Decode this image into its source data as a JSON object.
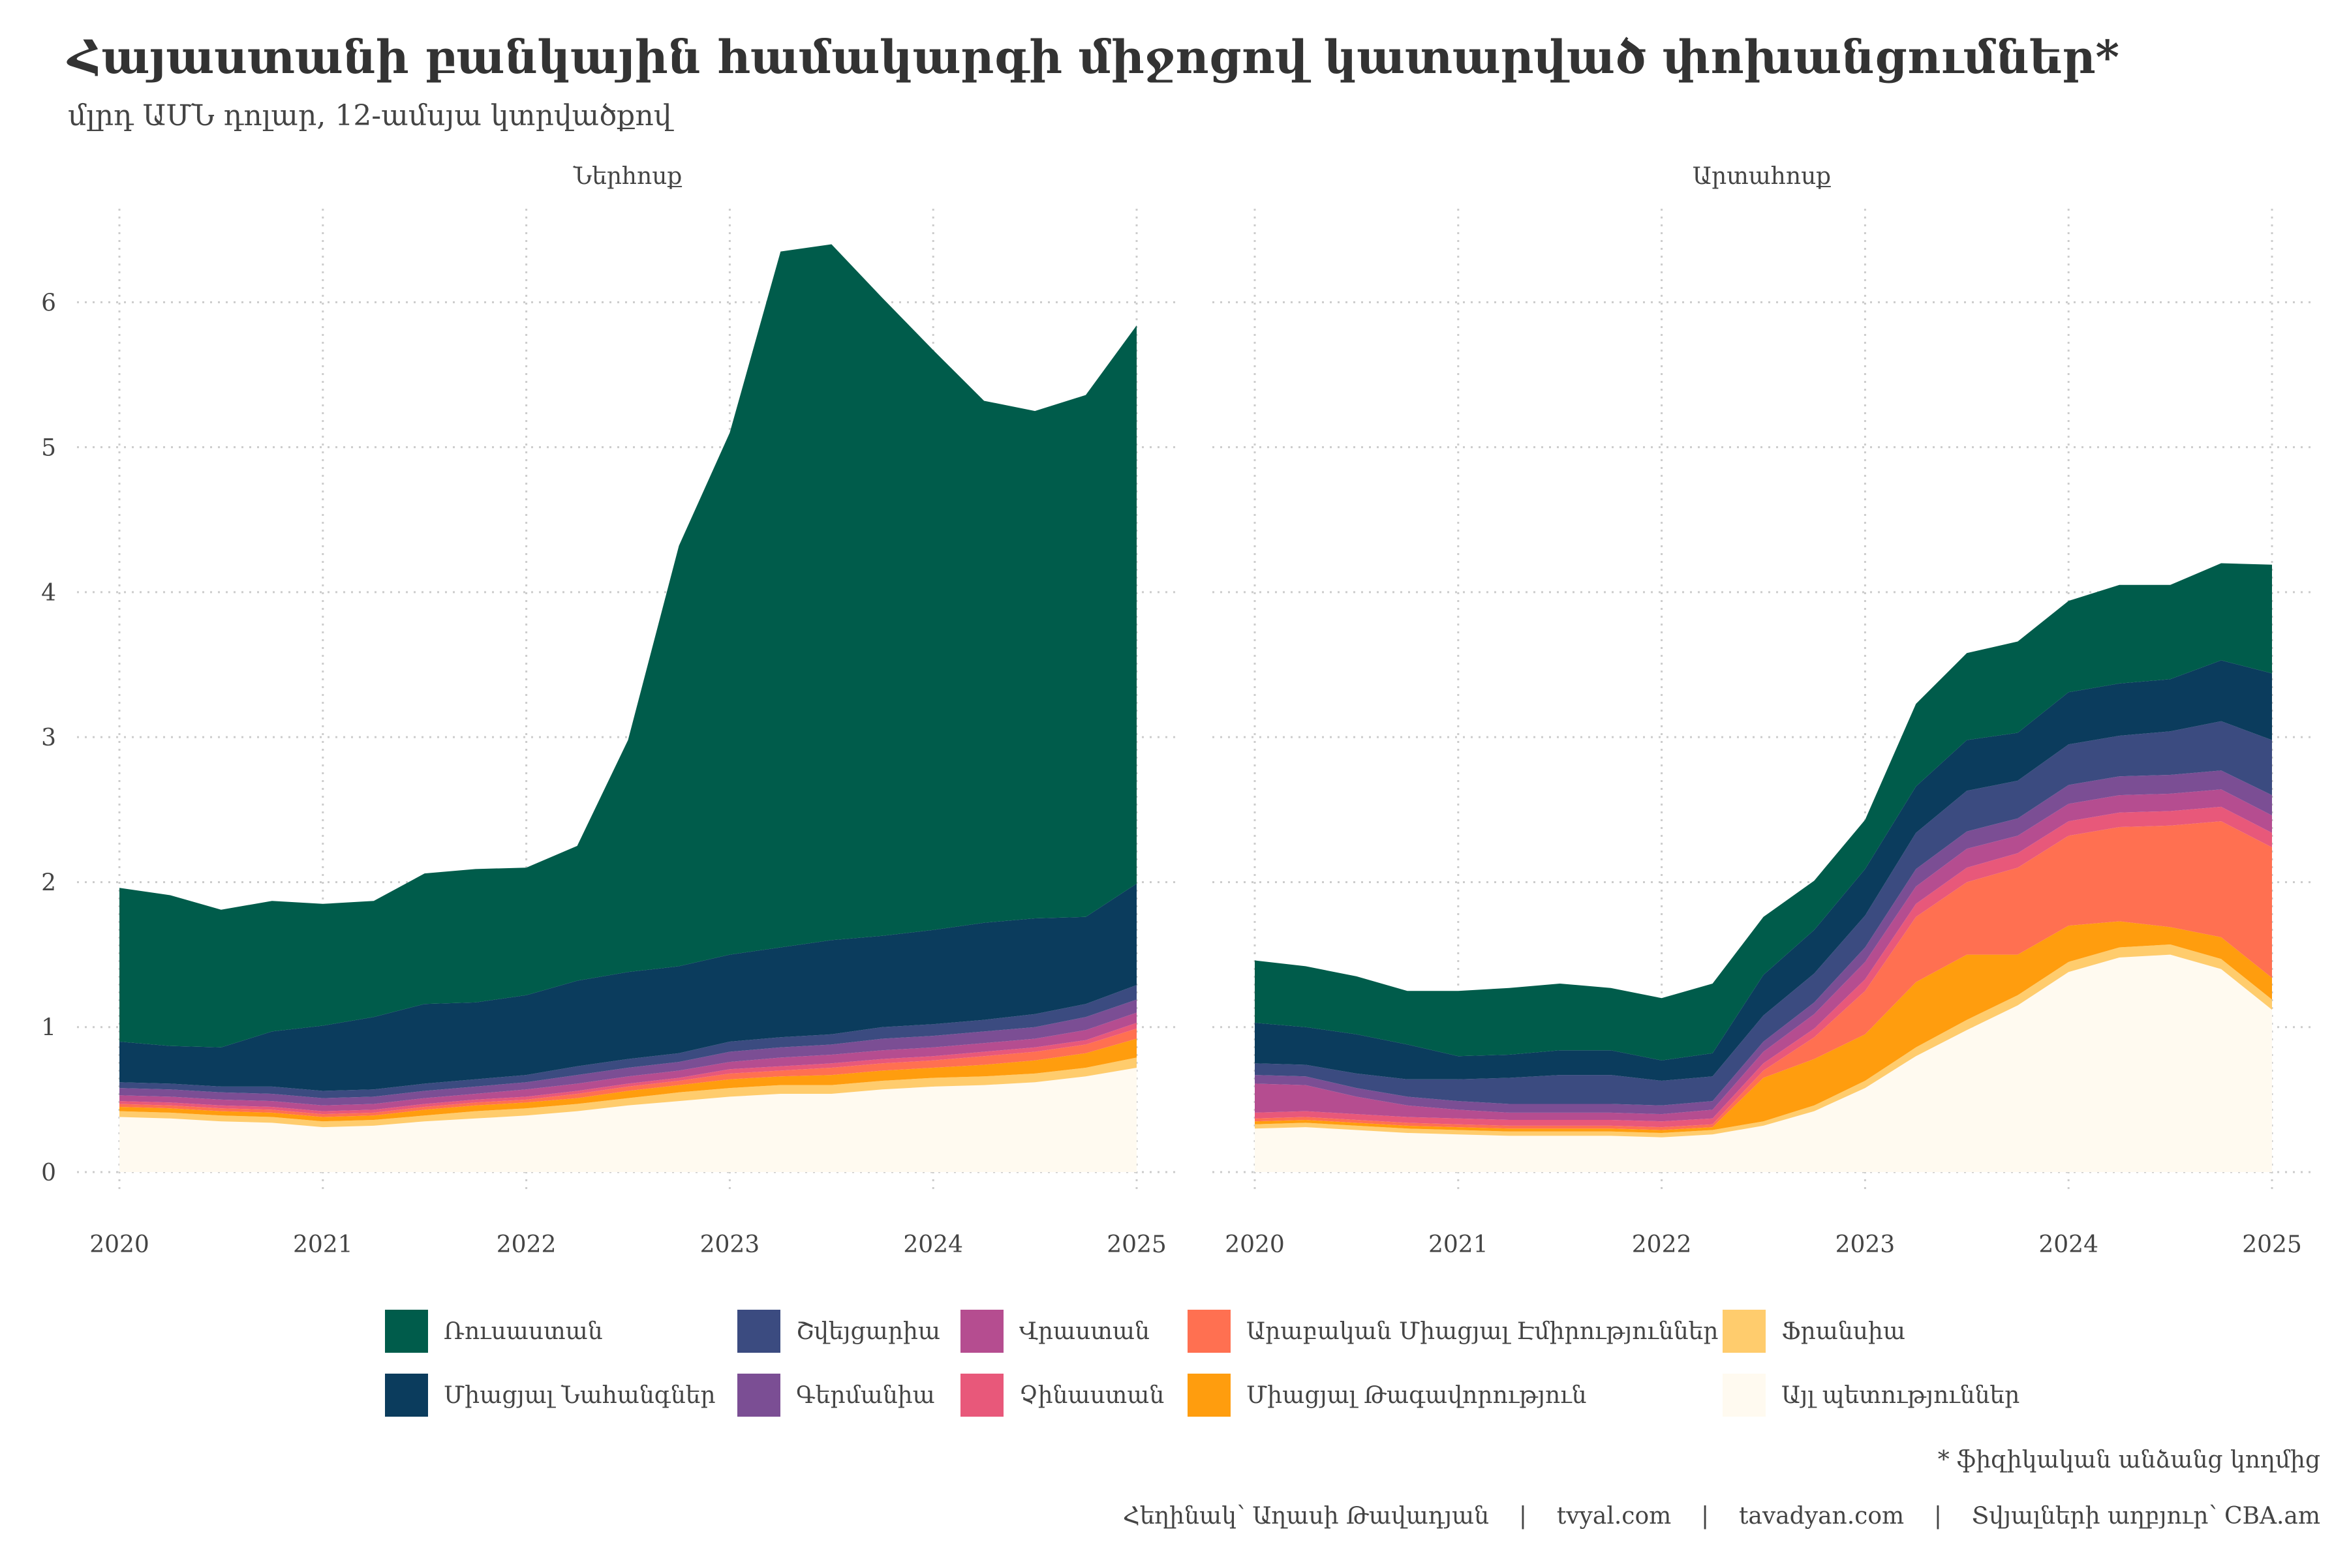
{
  "title": "Հայաստանի բանկային համակարգի միջոցով կատարված փոխանցումներ*",
  "subtitle": "մլրդ ԱՄՆ դոլար, 12-ամսյա կտրվածքով",
  "footnote": "* ֆիզիկական անձանց կողմից",
  "caption": "Հեղինակ՝ Աղասի Թավադյան    |    tvyal.com    |    tavadyan.com    |    Տվյալների աղբյուր՝ CBA.am",
  "colors": {
    "russia": "#005C4B",
    "usa": "#0B3C5D",
    "switzerland": "#3B4B80",
    "germany": "#7B4E94",
    "georgia": "#B54D90",
    "china": "#E8587A",
    "uae": "#FF7051",
    "uk": "#FF9D0E",
    "france": "#FFCC6D",
    "other": "#FFFAF0"
  },
  "legend": [
    {
      "key": "russia",
      "label": "Ռուսաստան"
    },
    {
      "key": "usa",
      "label": "Միացյալ Նահանգներ"
    },
    {
      "key": "switzerland",
      "label": "Շվեյցարիա"
    },
    {
      "key": "germany",
      "label": "Գերմանիա"
    },
    {
      "key": "georgia",
      "label": "Վրաստան"
    },
    {
      "key": "china",
      "label": "Չինաստան"
    },
    {
      "key": "uae",
      "label": "Արաբական Միացյալ Էմիրություններ"
    },
    {
      "key": "uk",
      "label": "Միացյալ Թագավորություն"
    },
    {
      "key": "france",
      "label": "Ֆրանսիա"
    },
    {
      "key": "other",
      "label": "Այլ պետություններ"
    }
  ],
  "chart_data": [
    {
      "type": "area",
      "stacked": true,
      "facet": "Ներհոսք",
      "x": [
        2020.0,
        2020.25,
        2020.5,
        2020.75,
        2021.0,
        2021.25,
        2021.5,
        2021.75,
        2022.0,
        2022.25,
        2022.5,
        2022.75,
        2023.0,
        2023.25,
        2023.5,
        2023.75,
        2024.0,
        2024.25,
        2024.5,
        2024.75,
        2025.0
      ],
      "x_ticks": [
        2020,
        2021,
        2022,
        2023,
        2024,
        2025
      ],
      "ylim": [
        0,
        6.6
      ],
      "y_ticks": [
        0,
        1,
        2,
        3,
        4,
        5,
        6
      ],
      "grid": true,
      "series": [
        {
          "key": "other",
          "values": [
            0.38,
            0.37,
            0.35,
            0.34,
            0.31,
            0.32,
            0.35,
            0.37,
            0.39,
            0.42,
            0.46,
            0.49,
            0.52,
            0.54,
            0.54,
            0.57,
            0.59,
            0.6,
            0.62,
            0.66,
            0.72
          ]
        },
        {
          "key": "france",
          "values": [
            0.04,
            0.04,
            0.04,
            0.04,
            0.04,
            0.04,
            0.04,
            0.05,
            0.05,
            0.05,
            0.05,
            0.06,
            0.06,
            0.06,
            0.06,
            0.06,
            0.06,
            0.06,
            0.06,
            0.06,
            0.07
          ]
        },
        {
          "key": "uk",
          "values": [
            0.03,
            0.03,
            0.03,
            0.03,
            0.03,
            0.03,
            0.04,
            0.04,
            0.04,
            0.04,
            0.05,
            0.05,
            0.06,
            0.06,
            0.07,
            0.07,
            0.07,
            0.08,
            0.09,
            0.1,
            0.13
          ]
        },
        {
          "key": "uae",
          "values": [
            0.02,
            0.02,
            0.02,
            0.02,
            0.02,
            0.02,
            0.02,
            0.02,
            0.02,
            0.03,
            0.03,
            0.03,
            0.04,
            0.04,
            0.05,
            0.05,
            0.05,
            0.06,
            0.06,
            0.06,
            0.07
          ]
        },
        {
          "key": "china",
          "values": [
            0.02,
            0.02,
            0.02,
            0.02,
            0.02,
            0.02,
            0.02,
            0.02,
            0.02,
            0.02,
            0.02,
            0.02,
            0.03,
            0.03,
            0.03,
            0.03,
            0.03,
            0.03,
            0.03,
            0.03,
            0.04
          ]
        },
        {
          "key": "georgia",
          "values": [
            0.04,
            0.04,
            0.04,
            0.04,
            0.04,
            0.04,
            0.04,
            0.04,
            0.05,
            0.05,
            0.05,
            0.05,
            0.05,
            0.06,
            0.06,
            0.06,
            0.06,
            0.06,
            0.06,
            0.07,
            0.07
          ]
        },
        {
          "key": "germany",
          "values": [
            0.05,
            0.05,
            0.05,
            0.05,
            0.05,
            0.05,
            0.05,
            0.05,
            0.05,
            0.06,
            0.06,
            0.06,
            0.07,
            0.07,
            0.07,
            0.08,
            0.08,
            0.08,
            0.08,
            0.09,
            0.09
          ]
        },
        {
          "key": "switzerland",
          "values": [
            0.04,
            0.04,
            0.04,
            0.05,
            0.05,
            0.05,
            0.05,
            0.05,
            0.05,
            0.06,
            0.06,
            0.06,
            0.07,
            0.07,
            0.07,
            0.08,
            0.08,
            0.08,
            0.09,
            0.09,
            0.1
          ]
        },
        {
          "key": "usa",
          "values": [
            0.28,
            0.26,
            0.27,
            0.38,
            0.45,
            0.5,
            0.55,
            0.53,
            0.55,
            0.59,
            0.6,
            0.6,
            0.6,
            0.62,
            0.65,
            0.63,
            0.65,
            0.67,
            0.66,
            0.6,
            0.7
          ]
        },
        {
          "key": "russia",
          "values": [
            1.06,
            1.04,
            0.95,
            0.9,
            0.84,
            0.8,
            0.9,
            0.92,
            0.88,
            0.93,
            1.6,
            2.9,
            3.6,
            4.8,
            4.8,
            4.4,
            4.0,
            3.6,
            3.5,
            3.6,
            3.85
          ]
        }
      ]
    },
    {
      "type": "area",
      "stacked": true,
      "facet": "Արտահոսք",
      "x": [
        2020.0,
        2020.25,
        2020.5,
        2020.75,
        2021.0,
        2021.25,
        2021.5,
        2021.75,
        2022.0,
        2022.25,
        2022.5,
        2022.75,
        2023.0,
        2023.25,
        2023.5,
        2023.75,
        2024.0,
        2024.25,
        2024.5,
        2024.75,
        2025.0
      ],
      "x_ticks": [
        2020,
        2021,
        2022,
        2023,
        2024,
        2025
      ],
      "ylim": [
        0,
        6.6
      ],
      "y_ticks": [
        0,
        1,
        2,
        3,
        4,
        5,
        6
      ],
      "grid": true,
      "series": [
        {
          "key": "other",
          "values": [
            0.3,
            0.31,
            0.29,
            0.27,
            0.26,
            0.25,
            0.25,
            0.25,
            0.24,
            0.26,
            0.32,
            0.42,
            0.58,
            0.8,
            0.98,
            1.15,
            1.38,
            1.48,
            1.5,
            1.4,
            1.12
          ]
        },
        {
          "key": "france",
          "values": [
            0.03,
            0.03,
            0.03,
            0.03,
            0.03,
            0.03,
            0.03,
            0.03,
            0.03,
            0.03,
            0.03,
            0.04,
            0.05,
            0.06,
            0.07,
            0.07,
            0.07,
            0.07,
            0.07,
            0.07,
            0.07
          ]
        },
        {
          "key": "uk",
          "values": [
            0.02,
            0.02,
            0.02,
            0.02,
            0.02,
            0.02,
            0.02,
            0.02,
            0.02,
            0.02,
            0.3,
            0.32,
            0.32,
            0.45,
            0.45,
            0.28,
            0.25,
            0.18,
            0.12,
            0.15,
            0.15
          ]
        },
        {
          "key": "uae",
          "values": [
            0.02,
            0.02,
            0.02,
            0.02,
            0.02,
            0.02,
            0.02,
            0.02,
            0.02,
            0.02,
            0.05,
            0.15,
            0.3,
            0.45,
            0.5,
            0.6,
            0.62,
            0.65,
            0.7,
            0.8,
            0.9
          ]
        },
        {
          "key": "china",
          "values": [
            0.04,
            0.04,
            0.04,
            0.04,
            0.04,
            0.04,
            0.04,
            0.04,
            0.04,
            0.04,
            0.05,
            0.06,
            0.08,
            0.09,
            0.1,
            0.1,
            0.1,
            0.1,
            0.1,
            0.1,
            0.1
          ]
        },
        {
          "key": "georgia",
          "values": [
            0.2,
            0.18,
            0.12,
            0.08,
            0.06,
            0.05,
            0.05,
            0.05,
            0.05,
            0.06,
            0.08,
            0.1,
            0.12,
            0.12,
            0.13,
            0.12,
            0.12,
            0.12,
            0.12,
            0.12,
            0.12
          ]
        },
        {
          "key": "germany",
          "values": [
            0.06,
            0.06,
            0.06,
            0.06,
            0.06,
            0.06,
            0.06,
            0.06,
            0.06,
            0.06,
            0.07,
            0.08,
            0.1,
            0.12,
            0.12,
            0.12,
            0.13,
            0.13,
            0.13,
            0.13,
            0.14
          ]
        },
        {
          "key": "switzerland",
          "values": [
            0.08,
            0.08,
            0.1,
            0.12,
            0.15,
            0.18,
            0.2,
            0.2,
            0.17,
            0.17,
            0.18,
            0.2,
            0.22,
            0.25,
            0.28,
            0.26,
            0.28,
            0.28,
            0.3,
            0.34,
            0.38
          ]
        },
        {
          "key": "usa",
          "values": [
            0.28,
            0.26,
            0.27,
            0.24,
            0.16,
            0.16,
            0.17,
            0.17,
            0.14,
            0.16,
            0.28,
            0.3,
            0.32,
            0.32,
            0.35,
            0.33,
            0.36,
            0.36,
            0.36,
            0.42,
            0.46
          ]
        },
        {
          "key": "russia",
          "values": [
            0.43,
            0.42,
            0.4,
            0.37,
            0.45,
            0.46,
            0.46,
            0.43,
            0.43,
            0.48,
            0.4,
            0.34,
            0.34,
            0.57,
            0.6,
            0.63,
            0.63,
            0.68,
            0.65,
            0.67,
            0.75
          ]
        }
      ]
    }
  ]
}
